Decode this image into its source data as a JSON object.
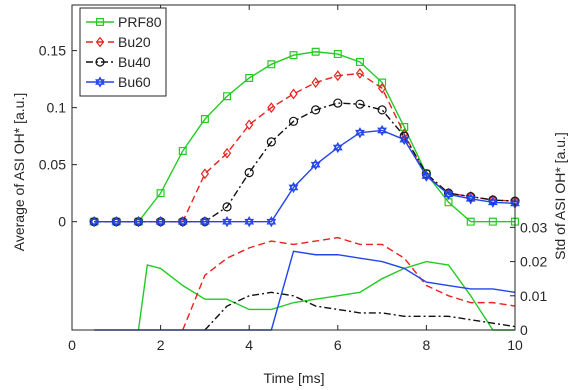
{
  "chart_data": {
    "type": "line",
    "xlabel": "Time [ms]",
    "ylabel_left": "Average of ASI OH* [a.u.]",
    "ylabel_right": "Std of ASI OH* [a.u.]",
    "x_ticks": [
      "0",
      "2",
      "4",
      "6",
      "8",
      "10"
    ],
    "y_left_ticks": [
      "0",
      "0.05",
      "0.1",
      "0.15"
    ],
    "y_right_ticks": [
      "0",
      "0.01",
      "0.02",
      "0.03"
    ],
    "xlim": [
      0,
      10
    ],
    "ylim_left": [
      -0.095,
      0.19
    ],
    "ylim_right": [
      0,
      0.095
    ],
    "legend_position": "top-left",
    "x": [
      0.5,
      1,
      1.5,
      2,
      2.5,
      3,
      3.5,
      4,
      4.5,
      5,
      5.5,
      6,
      6.5,
      7,
      7.5,
      8,
      8.5,
      9,
      9.5,
      10
    ],
    "series": [
      {
        "name": "PRF80",
        "color": "#22cc22",
        "marker": "square",
        "dash": "solid",
        "mean": [
          0,
          0,
          0,
          0.025,
          0.062,
          0.09,
          0.11,
          0.126,
          0.138,
          0.146,
          0.149,
          0.147,
          0.14,
          0.122,
          0.083,
          0.042,
          0.017,
          0,
          0,
          0
        ],
        "std_x": [
          1.5,
          1.7,
          2.0,
          2.5,
          3.0,
          3.5,
          4.0,
          4.5,
          5.0,
          5.5,
          6.0,
          6.5,
          7.0,
          7.5,
          8.0,
          8.5,
          9.0,
          9.5,
          10
        ],
        "std": [
          0,
          0.019,
          0.018,
          0.013,
          0.009,
          0.009,
          0.006,
          0.006,
          0.008,
          0.009,
          0.01,
          0.011,
          0.015,
          0.018,
          0.02,
          0.019,
          0.01,
          0,
          0
        ]
      },
      {
        "name": "Bu20",
        "color": "#e8221e",
        "marker": "diamond",
        "dash": "dashed",
        "mean": [
          0,
          0,
          0,
          0,
          0,
          0.042,
          0.06,
          0.085,
          0.1,
          0.112,
          0.122,
          0.128,
          0.13,
          0.117,
          0.077,
          0.04,
          0.025,
          0.022,
          0.019,
          0.018
        ],
        "std_x": [
          2.5,
          3.0,
          3.5,
          4.0,
          4.5,
          5.0,
          5.5,
          6.0,
          6.5,
          7.0,
          7.5,
          8.0,
          8.5,
          9.0,
          9.5,
          10
        ],
        "std": [
          0,
          0.016,
          0.021,
          0.024,
          0.026,
          0.025,
          0.026,
          0.027,
          0.025,
          0.025,
          0.021,
          0.013,
          0.01,
          0.008,
          0.008,
          0.007
        ]
      },
      {
        "name": "Bu40",
        "color": "#111111",
        "marker": "circle",
        "dash": "dashdot",
        "mean": [
          0,
          0,
          0,
          0,
          0,
          0,
          0.013,
          0.043,
          0.07,
          0.088,
          0.098,
          0.104,
          0.103,
          0.098,
          0.075,
          0.042,
          0.025,
          0.022,
          0.019,
          0.018
        ],
        "std_x": [
          3.0,
          3.5,
          4.0,
          4.5,
          5.0,
          5.5,
          6.0,
          6.5,
          7.0,
          7.5,
          8.0,
          8.5,
          9.0,
          9.5,
          10
        ],
        "std": [
          0,
          0.007,
          0.01,
          0.011,
          0.01,
          0.007,
          0.006,
          0.005,
          0.005,
          0.004,
          0.004,
          0.004,
          0.003,
          0.002,
          0.001
        ]
      },
      {
        "name": "Bu60",
        "color": "#2244ee",
        "marker": "hexagram",
        "dash": "solid",
        "mean": [
          0,
          0,
          0,
          0,
          0,
          0,
          0,
          0,
          0,
          0.03,
          0.05,
          0.065,
          0.078,
          0.08,
          0.072,
          0.04,
          0.024,
          0.02,
          0.017,
          0.016
        ],
        "std_x": [
          0.5,
          4.5,
          5.0,
          5.5,
          6.0,
          6.5,
          7.0,
          7.5,
          8.0,
          8.5,
          9.0,
          9.5,
          10
        ],
        "std": [
          0,
          0,
          0.023,
          0.022,
          0.022,
          0.021,
          0.02,
          0.018,
          0.014,
          0.013,
          0.012,
          0.012,
          0.011
        ]
      }
    ]
  }
}
